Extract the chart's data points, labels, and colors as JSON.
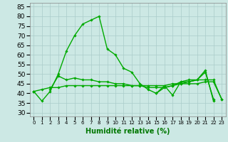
{
  "x": [
    0,
    1,
    2,
    3,
    4,
    5,
    6,
    7,
    8,
    9,
    10,
    11,
    12,
    13,
    14,
    15,
    16,
    17,
    18,
    19,
    20,
    21,
    22,
    23
  ],
  "series": [
    {
      "y": [
        41,
        36,
        41,
        50,
        62,
        70,
        76,
        78,
        80,
        63,
        60,
        53,
        51,
        45,
        42,
        40,
        43,
        44,
        46,
        47,
        47,
        52,
        36,
        null
      ]
    },
    {
      "y": [
        41,
        null,
        42,
        49,
        47,
        48,
        47,
        47,
        46,
        46,
        45,
        45,
        44,
        44,
        43,
        43,
        43,
        44,
        45,
        46,
        47,
        47,
        47,
        37
      ]
    },
    {
      "y": [
        41,
        42,
        43,
        43,
        44,
        44,
        44,
        44,
        44,
        44,
        44,
        44,
        44,
        44,
        44,
        44,
        44,
        45,
        45,
        45,
        45,
        46,
        46,
        37
      ]
    },
    {
      "y": [
        null,
        null,
        null,
        null,
        null,
        null,
        null,
        null,
        null,
        null,
        null,
        null,
        null,
        null,
        null,
        40,
        44,
        39,
        46,
        46,
        47,
        51,
        37,
        null
      ]
    }
  ],
  "xlabel": "Humidité relative (%)",
  "xlabel_fontsize": 7,
  "xtick_labels": [
    "0",
    "1",
    "2",
    "3",
    "4",
    "5",
    "6",
    "7",
    "8",
    "9",
    "10",
    "11",
    "12",
    "13",
    "14",
    "15",
    "16",
    "17",
    "18",
    "19",
    "20",
    "21",
    "22",
    "23"
  ],
  "yticks": [
    30,
    35,
    40,
    45,
    50,
    55,
    60,
    65,
    70,
    75,
    80,
    85
  ],
  "ylim": [
    28,
    87
  ],
  "xlim": [
    -0.5,
    23.5
  ],
  "bg_color": "#cce8e4",
  "grid_color": "#aaccca",
  "line_color": "#00aa00",
  "marker": "D",
  "marker_size": 1.8,
  "lw": 1.0,
  "figsize": [
    3.2,
    2.0
  ],
  "dpi": 100
}
